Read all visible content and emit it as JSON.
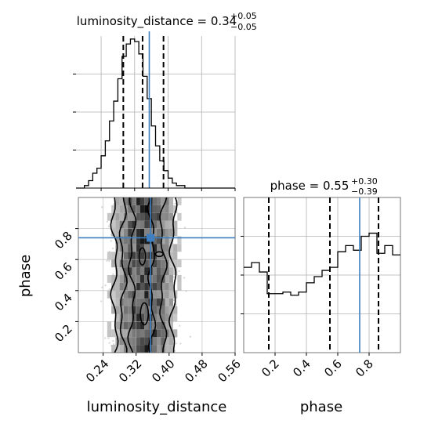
{
  "colors": {
    "truth": "#3f7fbf",
    "hist": "#000000",
    "grid": "#b0b0b0",
    "contour": "#000000"
  },
  "chart_data": [
    {
      "panel": "luminosity_distance-marginal",
      "type": "histogram",
      "title_param": "luminosity_distance",
      "title_value": "0.34",
      "title_upper": "+0.05",
      "title_lower": "−0.05",
      "xlim": [
        0.18,
        0.56
      ],
      "bin_edges": [
        0.18,
        0.19,
        0.2,
        0.21,
        0.22,
        0.23,
        0.24,
        0.25,
        0.26,
        0.27,
        0.28,
        0.29,
        0.3,
        0.31,
        0.32,
        0.33,
        0.34,
        0.35,
        0.36,
        0.37,
        0.38,
        0.39,
        0.4,
        0.41,
        0.42,
        0.43,
        0.44,
        0.45,
        0.46,
        0.47,
        0.48,
        0.49,
        0.5,
        0.51,
        0.52,
        0.53,
        0.54,
        0.55,
        0.56
      ],
      "counts": [
        0,
        0,
        1,
        3,
        6,
        8,
        13,
        19,
        27,
        35,
        44,
        53,
        58,
        60,
        59,
        54,
        45,
        36,
        25,
        17,
        11,
        7,
        4,
        2,
        1,
        1,
        0,
        0,
        0,
        0,
        0,
        0,
        0,
        0,
        0,
        0,
        0,
        0
      ],
      "quantile_lines": [
        0.293,
        0.339,
        0.389
      ],
      "truth": 0.355,
      "grid": true
    },
    {
      "panel": "phase-marginal",
      "type": "histogram",
      "title_param": "phase",
      "title_value": "0.55",
      "title_upper": "+0.30",
      "title_lower": "−0.39",
      "xlim": [
        0.0,
        1.0
      ],
      "bin_edges": [
        0.0,
        0.05,
        0.1,
        0.15,
        0.2,
        0.25,
        0.3,
        0.35,
        0.4,
        0.45,
        0.5,
        0.55,
        0.6,
        0.65,
        0.7,
        0.75,
        0.8,
        0.85,
        0.9,
        0.95,
        1.0
      ],
      "counts": [
        0.55,
        0.58,
        0.52,
        0.38,
        0.38,
        0.39,
        0.37,
        0.39,
        0.45,
        0.49,
        0.53,
        0.55,
        0.65,
        0.69,
        0.66,
        0.75,
        0.77,
        0.64,
        0.69,
        0.63
      ],
      "quantile_lines": [
        0.16,
        0.55,
        0.86
      ],
      "truth": 0.74,
      "xticks": [
        "0.2",
        "0.4",
        "0.6",
        "0.8"
      ],
      "xtick_values": [
        0.2,
        0.4,
        0.6,
        0.8
      ],
      "xlabel": "phase",
      "grid": true
    },
    {
      "panel": "joint",
      "type": "scatter-density",
      "xlim": [
        0.18,
        0.56
      ],
      "ylim": [
        0.0,
        1.0
      ],
      "xticks": [
        "0.24",
        "0.32",
        "0.40",
        "0.48",
        "0.56"
      ],
      "xtick_values": [
        0.24,
        0.32,
        0.4,
        0.48,
        0.56
      ],
      "yticks": [
        "0.2",
        "0.4",
        "0.6",
        "0.8"
      ],
      "ytick_values": [
        0.2,
        0.4,
        0.6,
        0.8
      ],
      "xlabel": "luminosity_distance",
      "ylabel": "phase",
      "truth": [
        0.355,
        0.74
      ],
      "density_centre_x": 0.34,
      "density_sigma_x": 0.05,
      "grid": true
    }
  ]
}
